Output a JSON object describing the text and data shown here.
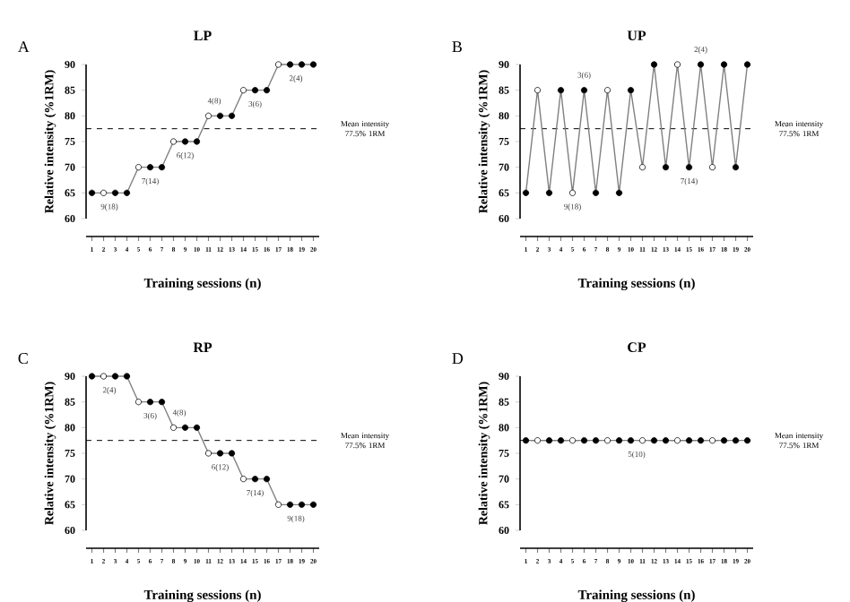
{
  "chart_data": [
    {
      "type": "line",
      "title": "LP",
      "xlabel": "Training sessions (n)",
      "ylabel": "Relative intensity (%1RM)",
      "x": [
        1,
        2,
        3,
        4,
        5,
        6,
        7,
        8,
        9,
        10,
        11,
        12,
        13,
        14,
        15,
        16,
        17,
        18,
        19,
        20
      ],
      "series": [
        {
          "color": "#808080",
          "values": [
            65,
            65,
            65,
            65,
            70,
            70,
            70,
            75,
            75,
            75,
            80,
            80,
            80,
            85,
            85,
            85,
            90,
            90,
            90,
            90
          ],
          "colors": [
            "#000000",
            "#ffffff",
            "#000000",
            "#000000",
            "#ffffff",
            "#000000",
            "#000000",
            "#ffffff",
            "#000000",
            "#000000",
            "#ffffff",
            "#000000",
            "#000000",
            "#ffffff",
            "#000000",
            "#000000",
            "#ffffff",
            "#000000",
            "#000000",
            "#000000"
          ]
        }
      ],
      "marker": "circle",
      "xlim": [
        0.5,
        20.5
      ],
      "xticks": [
        1,
        2,
        3,
        4,
        5,
        6,
        7,
        8,
        9,
        10,
        11,
        12,
        13,
        14,
        15,
        16,
        17,
        18,
        19,
        20
      ],
      "ylim": [
        60,
        90
      ],
      "yticks": [
        60,
        65,
        70,
        75,
        80,
        85,
        90
      ],
      "ref_lines": [
        {
          "axis": "y",
          "value": 77.5,
          "label": "Mean intensity 77.5% 1RM",
          "line_style": "dashed"
        }
      ],
      "annotations": [
        "A",
        {
          "text": "9(18)",
          "x": 2.5,
          "y": 65
        },
        {
          "text": "7(14)",
          "x": 6,
          "y": 70
        },
        {
          "text": "6(12)",
          "x": 9,
          "y": 75
        },
        {
          "text": "4(8)",
          "x": 11.5,
          "y": 80
        },
        {
          "text": "3(6)",
          "x": 15,
          "y": 85
        },
        {
          "text": "2(4)",
          "x": 18.5,
          "y": 90
        }
      ]
    },
    {
      "type": "line",
      "title": "UP",
      "xlabel": "Training sessions (n)",
      "ylabel": "Relative intensity (%1RM)",
      "x": [
        1,
        2,
        3,
        4,
        5,
        6,
        7,
        8,
        9,
        10,
        11,
        12,
        13,
        14,
        15,
        16,
        17,
        18,
        19,
        20
      ],
      "series": [
        {
          "color": "#808080",
          "values": [
            65,
            85,
            65,
            85,
            65,
            85,
            65,
            85,
            65,
            85,
            70,
            90,
            70,
            90,
            70,
            90,
            70,
            90,
            70,
            90
          ],
          "colors": [
            "#000000",
            "#ffffff",
            "#000000",
            "#000000",
            "#ffffff",
            "#000000",
            "#000000",
            "#ffffff",
            "#000000",
            "#000000",
            "#ffffff",
            "#000000",
            "#000000",
            "#ffffff",
            "#000000",
            "#000000",
            "#ffffff",
            "#000000",
            "#000000",
            "#000000"
          ]
        }
      ],
      "marker": "circle",
      "xlim": [
        0.5,
        20.5
      ],
      "xticks": [
        1,
        2,
        3,
        4,
        5,
        6,
        7,
        8,
        9,
        10,
        11,
        12,
        13,
        14,
        15,
        16,
        17,
        18,
        19,
        20
      ],
      "ylim": [
        60,
        90
      ],
      "yticks": [
        60,
        65,
        70,
        75,
        80,
        85,
        90
      ],
      "ref_lines": [
        {
          "axis": "y",
          "value": 77.5,
          "label": "Mean intensity 77.5% 1RM",
          "line_style": "dashed"
        }
      ],
      "annotations": [
        "B",
        {
          "text": "3(6)",
          "x": 6,
          "y": 85
        },
        {
          "text": "9(18)",
          "x": 5,
          "y": 65
        },
        {
          "text": "2(4)",
          "x": 16,
          "y": 90
        },
        {
          "text": "7(14)",
          "x": 15,
          "y": 70
        }
      ]
    },
    {
      "type": "line",
      "title": "RP",
      "xlabel": "Training sessions (n)",
      "ylabel": "Relative intensity (%1RM)",
      "x": [
        1,
        2,
        3,
        4,
        5,
        6,
        7,
        8,
        9,
        10,
        11,
        12,
        13,
        14,
        15,
        16,
        17,
        18,
        19,
        20
      ],
      "series": [
        {
          "color": "#808080",
          "values": [
            90,
            90,
            90,
            90,
            85,
            85,
            85,
            80,
            80,
            80,
            75,
            75,
            75,
            70,
            70,
            70,
            65,
            65,
            65,
            65
          ],
          "colors": [
            "#000000",
            "#ffffff",
            "#000000",
            "#000000",
            "#ffffff",
            "#000000",
            "#000000",
            "#ffffff",
            "#000000",
            "#000000",
            "#ffffff",
            "#000000",
            "#000000",
            "#ffffff",
            "#000000",
            "#000000",
            "#ffffff",
            "#000000",
            "#000000",
            "#000000"
          ]
        }
      ],
      "marker": "circle",
      "xlim": [
        0.5,
        20.5
      ],
      "xticks": [
        1,
        2,
        3,
        4,
        5,
        6,
        7,
        8,
        9,
        10,
        11,
        12,
        13,
        14,
        15,
        16,
        17,
        18,
        19,
        20
      ],
      "ylim": [
        60,
        90
      ],
      "yticks": [
        60,
        65,
        70,
        75,
        80,
        85,
        90
      ],
      "ref_lines": [
        {
          "axis": "y",
          "value": 77.5,
          "label": "Mean intensity 77.5% 1RM",
          "line_style": "dashed"
        }
      ],
      "annotations": [
        "C",
        {
          "text": "2(4)",
          "x": 2.5,
          "y": 90
        },
        {
          "text": "3(6)",
          "x": 6,
          "y": 85
        },
        {
          "text": "4(8)",
          "x": 8.5,
          "y": 80
        },
        {
          "text": "6(12)",
          "x": 12,
          "y": 75
        },
        {
          "text": "7(14)",
          "x": 15,
          "y": 70
        },
        {
          "text": "9(18)",
          "x": 18.5,
          "y": 65
        }
      ]
    },
    {
      "type": "line",
      "title": "CP",
      "xlabel": "Training sessions (n)",
      "ylabel": "Relative intensity (%1RM)",
      "x": [
        1,
        2,
        3,
        4,
        5,
        6,
        7,
        8,
        9,
        10,
        11,
        12,
        13,
        14,
        15,
        16,
        17,
        18,
        19,
        20
      ],
      "series": [
        {
          "color": "#808080",
          "values": [
            77.5,
            77.5,
            77.5,
            77.5,
            77.5,
            77.5,
            77.5,
            77.5,
            77.5,
            77.5,
            77.5,
            77.5,
            77.5,
            77.5,
            77.5,
            77.5,
            77.5,
            77.5,
            77.5,
            77.5
          ],
          "colors": [
            "#000000",
            "#ffffff",
            "#000000",
            "#000000",
            "#ffffff",
            "#000000",
            "#000000",
            "#ffffff",
            "#000000",
            "#000000",
            "#ffffff",
            "#000000",
            "#000000",
            "#ffffff",
            "#000000",
            "#000000",
            "#ffffff",
            "#000000",
            "#000000",
            "#000000"
          ]
        }
      ],
      "marker": "circle",
      "xlim": [
        0.5,
        20.5
      ],
      "xticks": [
        1,
        2,
        3,
        4,
        5,
        6,
        7,
        8,
        9,
        10,
        11,
        12,
        13,
        14,
        15,
        16,
        17,
        18,
        19,
        20
      ],
      "ylim": [
        60,
        90
      ],
      "yticks": [
        60,
        65,
        70,
        75,
        80,
        85,
        90
      ],
      "ref_lines": [
        {
          "axis": "y",
          "value": 77.5,
          "label": "Mean intensity 77.5% 1RM",
          "line_style": "dashed"
        }
      ],
      "annotations": [
        "D",
        {
          "text": "5(10)",
          "x": 10.5,
          "y": 77.5
        }
      ]
    }
  ]
}
